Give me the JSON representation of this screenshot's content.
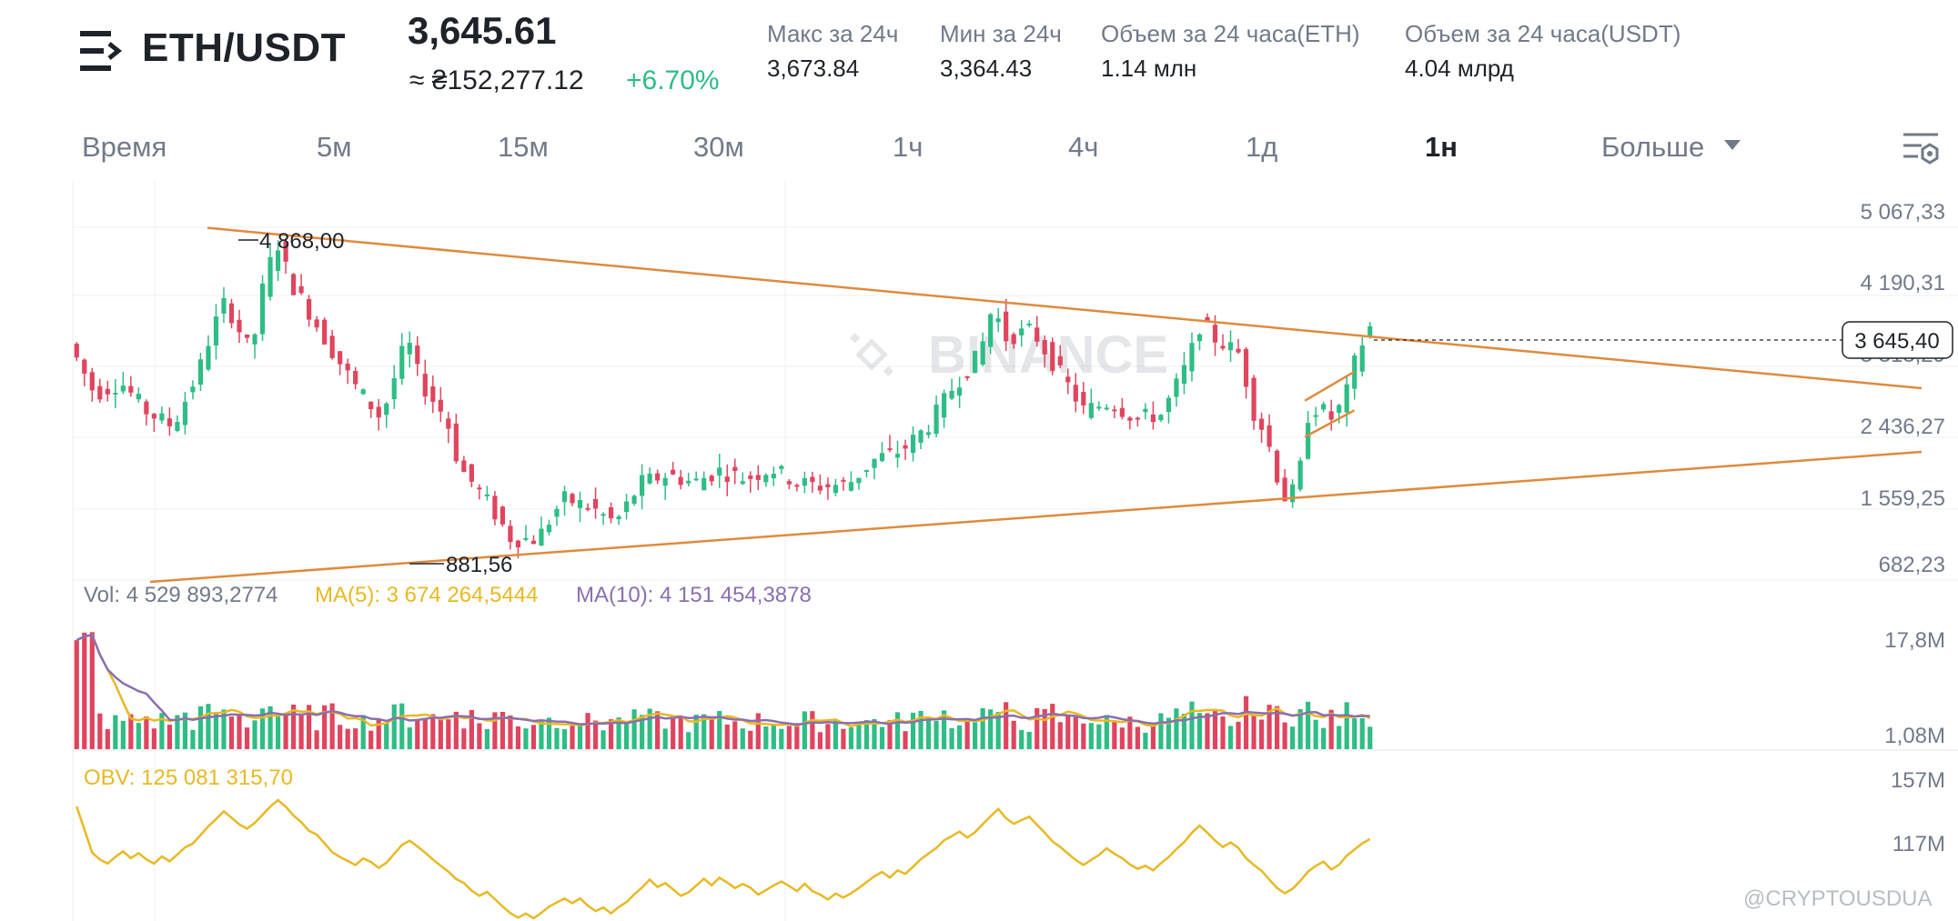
{
  "header": {
    "pair": "ETH/USDT",
    "price": "3,645.61",
    "fiat_price": "≈ ₴152,277.12",
    "change": "+6.70%",
    "stats": [
      {
        "label": "Макс за 24ч",
        "value": "3,673.84"
      },
      {
        "label": "Мин за 24ч",
        "value": "3,364.43"
      },
      {
        "label": "Объем за 24 часа(ETH)",
        "value": "1.14 млн"
      },
      {
        "label": "Объем за 24 часа(USDT)",
        "value": "4.04 млрд"
      }
    ]
  },
  "timeframes": [
    "Время",
    "5м",
    "15м",
    "30м",
    "1ч",
    "4ч",
    "1д",
    "1н",
    "Больше"
  ],
  "active_timeframe": "1н",
  "price_axis": [
    "5 067,33",
    "4 190,31",
    "3 313,29",
    "2 436,27",
    "1 559,25",
    "682,23"
  ],
  "current_price_tag": "3 645,40",
  "annotations": {
    "high": "4 868,00",
    "low": "881,56"
  },
  "watermark": "BINANCE",
  "volume_panel": {
    "vol": "Vol: 4 529 893,2774",
    "ma5": "MA(5): 3 674 264,5444",
    "ma10": "MA(10): 4 151 454,3878",
    "axis": [
      "17,8M",
      "1,08M"
    ]
  },
  "obv_panel": {
    "label": "OBV: 125 081 315,70",
    "axis": [
      "157M",
      "117M"
    ]
  },
  "credit": "@CRYPTOUSDUA",
  "colors": {
    "up": "#2ebd85",
    "down": "#e0455e",
    "trendline": "#e08a3c",
    "ma5": "#e8b923",
    "ma10": "#8a6fb0",
    "obv": "#e8b923",
    "text_muted": "#707a8a"
  },
  "chart_data": {
    "type": "candlestick",
    "interval": "1w",
    "y_range": [
      682.23,
      5067.33
    ],
    "high_mark": 4868.0,
    "low_mark": 881.56,
    "last_price": 3645.4,
    "trendlines": [
      {
        "name": "upper",
        "points": [
          [
            0.06,
            4868
          ],
          [
            1.0,
            3060
          ]
        ]
      },
      {
        "name": "lower",
        "points": [
          [
            0.06,
            682
          ],
          [
            1.0,
            2780
          ]
        ]
      },
      {
        "name": "channel_top",
        "points": [
          [
            0.947,
            2720
          ],
          [
            0.985,
            3080
          ]
        ]
      },
      {
        "name": "channel_bottom",
        "points": [
          [
            0.947,
            2270
          ],
          [
            0.985,
            2600
          ]
        ]
      }
    ],
    "close_path": [
      [
        0.0,
        3430
      ],
      [
        0.02,
        2800
      ],
      [
        0.04,
        2950
      ],
      [
        0.06,
        2580
      ],
      [
        0.08,
        2400
      ],
      [
        0.1,
        3100
      ],
      [
        0.11,
        3600
      ],
      [
        0.12,
        3950
      ],
      [
        0.14,
        3300
      ],
      [
        0.15,
        4200
      ],
      [
        0.16,
        4700
      ],
      [
        0.17,
        4200
      ],
      [
        0.18,
        3950
      ],
      [
        0.2,
        3400
      ],
      [
        0.22,
        2900
      ],
      [
        0.24,
        2500
      ],
      [
        0.26,
        3500
      ],
      [
        0.27,
        2950
      ],
      [
        0.29,
        2500
      ],
      [
        0.3,
        1900
      ],
      [
        0.32,
        1500
      ],
      [
        0.34,
        1000
      ],
      [
        0.36,
        1000
      ],
      [
        0.38,
        1500
      ],
      [
        0.4,
        1400
      ],
      [
        0.42,
        1200
      ],
      [
        0.44,
        1700
      ],
      [
        0.46,
        1800
      ],
      [
        0.48,
        1700
      ],
      [
        0.5,
        1850
      ],
      [
        0.52,
        1750
      ],
      [
        0.54,
        1880
      ],
      [
        0.56,
        1700
      ],
      [
        0.58,
        1650
      ],
      [
        0.6,
        1700
      ],
      [
        0.62,
        2000
      ],
      [
        0.64,
        2100
      ],
      [
        0.66,
        2400
      ],
      [
        0.68,
        2900
      ],
      [
        0.7,
        3300
      ],
      [
        0.71,
        3900
      ],
      [
        0.72,
        3500
      ],
      [
        0.74,
        3600
      ],
      [
        0.76,
        3100
      ],
      [
        0.78,
        2600
      ],
      [
        0.8,
        2700
      ],
      [
        0.82,
        2500
      ],
      [
        0.84,
        2550
      ],
      [
        0.86,
        3200
      ],
      [
        0.87,
        3700
      ],
      [
        0.88,
        3500
      ],
      [
        0.9,
        3300
      ],
      [
        0.91,
        2600
      ],
      [
        0.92,
        2300
      ],
      [
        0.93,
        1700
      ],
      [
        0.935,
        1500
      ],
      [
        0.945,
        1650
      ],
      [
        0.95,
        2500
      ],
      [
        0.96,
        2650
      ],
      [
        0.97,
        2500
      ],
      [
        0.98,
        2700
      ],
      [
        0.99,
        3300
      ],
      [
        1.0,
        3645
      ]
    ],
    "volume_range": [
      1080000,
      17800000
    ],
    "obv_range": [
      117000000,
      157000000
    ]
  }
}
